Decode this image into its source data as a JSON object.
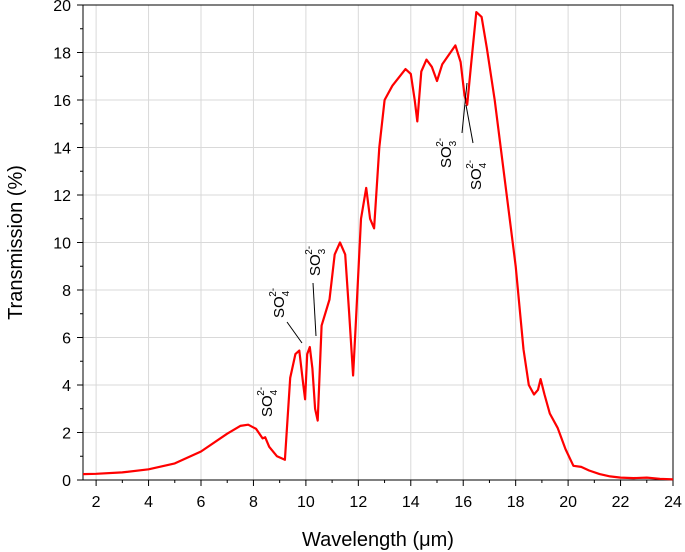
{
  "chart_data": {
    "type": "line",
    "title": "",
    "xlabel": "Wavelength (μm)",
    "ylabel": "Transmission (%)",
    "xlim": [
      1.5,
      24
    ],
    "ylim": [
      0,
      20
    ],
    "xticks": [
      2,
      4,
      6,
      8,
      10,
      12,
      14,
      16,
      18,
      20,
      22,
      24
    ],
    "yticks": [
      0,
      2,
      4,
      6,
      8,
      10,
      12,
      14,
      16,
      18,
      20
    ],
    "grid": true,
    "line_color": "#ff0000",
    "series": [
      {
        "name": "",
        "x": [
          1.5,
          2.0,
          3.0,
          4.0,
          5.0,
          6.0,
          7.0,
          7.5,
          7.8,
          8.1,
          8.35,
          8.45,
          8.6,
          8.9,
          9.2,
          9.4,
          9.6,
          9.75,
          9.9,
          9.97,
          10.05,
          10.15,
          10.25,
          10.35,
          10.45,
          10.6,
          10.9,
          11.1,
          11.3,
          11.5,
          11.65,
          11.8,
          11.9,
          12.1,
          12.3,
          12.45,
          12.6,
          12.8,
          13.0,
          13.3,
          13.8,
          14.0,
          14.15,
          14.25,
          14.4,
          14.6,
          14.8,
          15.0,
          15.2,
          15.7,
          15.9,
          16.05,
          16.15,
          16.3,
          16.5,
          16.7,
          16.9,
          17.2,
          17.6,
          18.0,
          18.3,
          18.5,
          18.7,
          18.85,
          18.95,
          19.1,
          19.3,
          19.6,
          19.9,
          20.2,
          20.5,
          20.8,
          21.2,
          21.6,
          22.0,
          22.5,
          23.0,
          23.5,
          24.0
        ],
        "y": [
          0.25,
          0.26,
          0.32,
          0.45,
          0.7,
          1.2,
          1.95,
          2.28,
          2.33,
          2.15,
          1.75,
          1.8,
          1.4,
          1.0,
          0.85,
          4.3,
          5.3,
          5.45,
          4.0,
          3.4,
          5.3,
          5.6,
          4.7,
          3.0,
          2.5,
          6.5,
          7.6,
          9.5,
          10.0,
          9.5,
          7.0,
          4.4,
          6.5,
          11.0,
          12.3,
          11.0,
          10.6,
          14.0,
          16.0,
          16.6,
          17.3,
          17.1,
          16.0,
          15.1,
          17.2,
          17.7,
          17.4,
          16.8,
          17.5,
          18.3,
          17.6,
          16.2,
          15.8,
          17.5,
          19.7,
          19.5,
          18.2,
          16.0,
          12.5,
          9.0,
          5.5,
          4.0,
          3.6,
          3.8,
          4.25,
          3.6,
          2.8,
          2.2,
          1.3,
          0.6,
          0.55,
          0.4,
          0.25,
          0.15,
          0.1,
          0.08,
          0.1,
          0.05,
          0.03
        ]
      }
    ],
    "annotations": [
      {
        "main": "SO",
        "sub": "4",
        "sup": "2-"
      },
      {
        "main": "SO",
        "sub": "4",
        "sup": "2-"
      },
      {
        "main": "SO",
        "sub": "3",
        "sup": "2-"
      },
      {
        "main": "SO",
        "sub": "3",
        "sup": "2-"
      },
      {
        "main": "SO",
        "sub": "4",
        "sup": "2-"
      }
    ]
  }
}
